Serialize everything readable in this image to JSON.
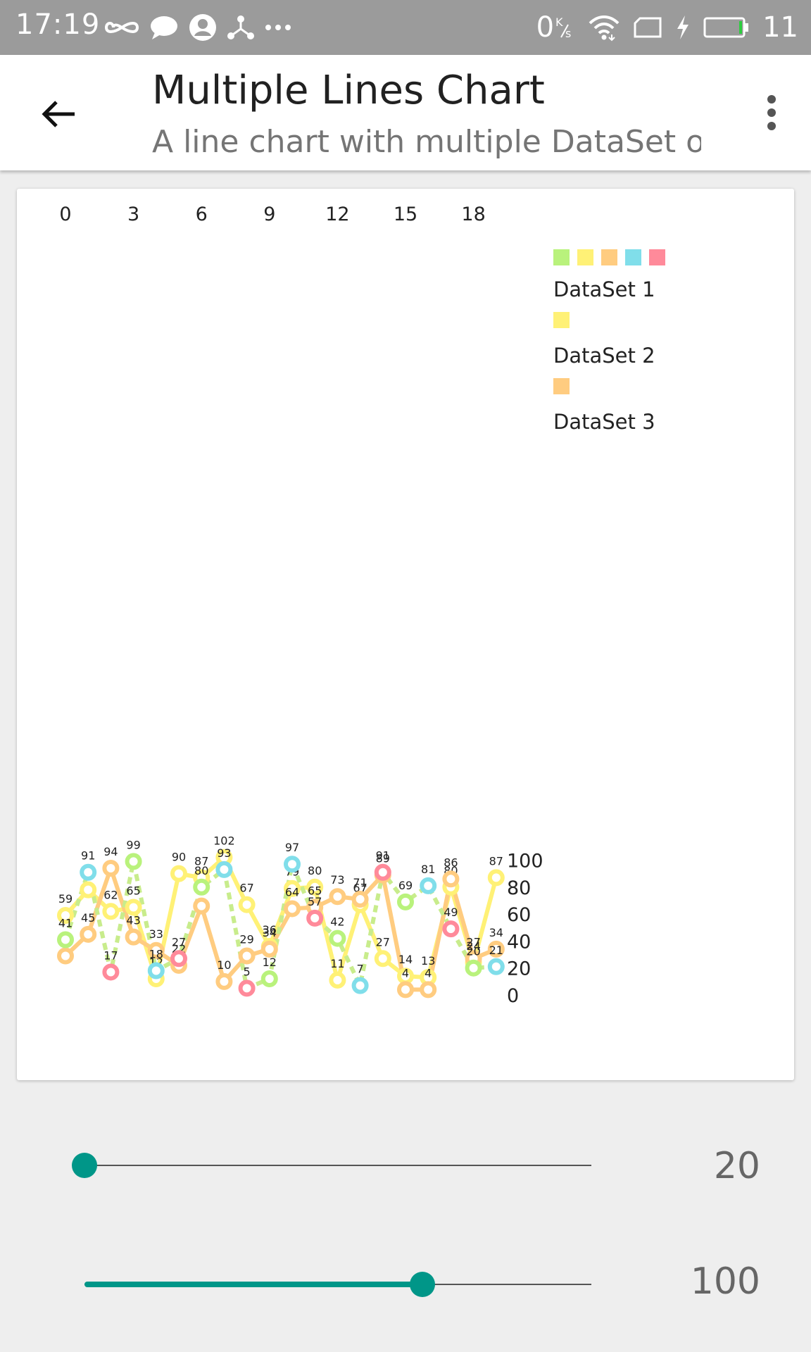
{
  "status_bar": {
    "time": "17:19",
    "net_speed": "0",
    "battery_level": "11",
    "icons_left": [
      "infinity-icon",
      "chat-bubble-icon",
      "account-circle-icon",
      "share-nodes-icon",
      "more-dots-icon"
    ],
    "icons_right": [
      "wifi-icon",
      "sim-card-icon",
      "charging-bolt-icon",
      "battery-icon"
    ]
  },
  "app_bar": {
    "title": "Multiple Lines Chart",
    "subtitle": "A line chart with multiple DataSet o..",
    "back_icon": "arrow-back-icon",
    "menu_icon": "overflow-menu-icon"
  },
  "chart_data": {
    "type": "line",
    "x_axis_position": "top",
    "y_axis_position": "right",
    "x_tick_labels": [
      "0",
      "3",
      "6",
      "9",
      "12",
      "15",
      "18"
    ],
    "y_tick_labels": [
      "0",
      "20",
      "40",
      "60",
      "80",
      "100"
    ],
    "ylim": [
      0,
      120
    ],
    "xlim": [
      0,
      19
    ],
    "x": [
      0,
      1,
      2,
      3,
      4,
      5,
      6,
      7,
      8,
      9,
      10,
      11,
      12,
      13,
      14,
      15,
      16,
      17,
      18,
      19
    ],
    "series": [
      {
        "name": "DataSet 1",
        "color": "#fff176",
        "style": "solid",
        "values": [
          59,
          78,
          62,
          65,
          12,
          90,
          87,
          102,
          67,
          36,
          79,
          80,
          11,
          67,
          27,
          14,
          13,
          80,
          24,
          87
        ]
      },
      {
        "name": "DataSet 2",
        "color": "#ffcc80",
        "style": "solid",
        "values": [
          29,
          45,
          94,
          43,
          33,
          22,
          66,
          10,
          29,
          34,
          64,
          65,
          73,
          71,
          89,
          4,
          4,
          86,
          27,
          34
        ]
      },
      {
        "name": "DataSet 3",
        "color": "#a5e07a",
        "style": "dashed",
        "values": [
          41,
          91,
          17,
          99,
          18,
          27,
          80,
          93,
          5,
          12,
          97,
          57,
          42,
          7,
          91,
          69,
          81,
          49,
          20,
          21
        ]
      }
    ],
    "legend_colors": [
      "#b9f27c",
      "#fff176",
      "#ffcc80",
      "#80deea",
      "#ff8a9a"
    ],
    "legend": "right",
    "grid": false
  },
  "sliders": [
    {
      "value": "20",
      "fraction": 0.0
    },
    {
      "value": "100",
      "fraction": 0.667
    }
  ]
}
